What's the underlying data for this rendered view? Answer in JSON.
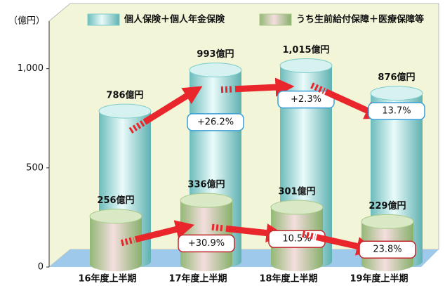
{
  "chart_data": {
    "type": "cylinder-bar",
    "y_axis_label": "（億円）",
    "categories": [
      "16年度上半期",
      "17年度上半期",
      "18年度上半期",
      "19年度上半期"
    ],
    "series": [
      {
        "name": "個人保険＋個人年金保険",
        "color": "#7ccccb",
        "values": [
          786,
          993,
          1015,
          876
        ],
        "value_labels": [
          "786億円",
          "993億円",
          "1,015億円",
          "876億円"
        ],
        "changes": [
          "+26.2%",
          "+2.3%",
          "13.7%"
        ],
        "change_border": "#3a9fd8"
      },
      {
        "name": "うち生前給付保障＋医療保障等",
        "color": "#a8c98a",
        "values": [
          256,
          336,
          301,
          229
        ],
        "value_labels": [
          "256億円",
          "336億円",
          "301億円",
          "229億円"
        ],
        "changes": [
          "+30.9%",
          "10.5%",
          "23.8%"
        ],
        "change_border": "#c0262d"
      }
    ],
    "ylim": [
      0,
      1300
    ],
    "yticks": [
      0,
      500,
      {
        "value": 1000,
        "label": "1,000"
      }
    ]
  }
}
